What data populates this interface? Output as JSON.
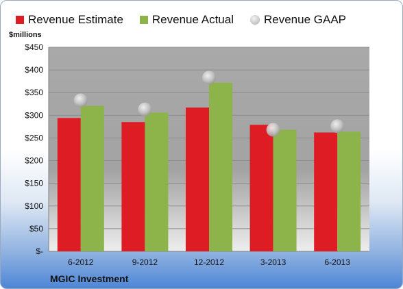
{
  "legend": {
    "estimate": "Revenue Estimate",
    "actual": "Revenue Actual",
    "gaap": "Revenue GAAP"
  },
  "units_label": "$millions",
  "footer_label": "MGIC Investment",
  "colors": {
    "estimate": "#dd1c24",
    "actual": "#8db44a",
    "gaap": "#c8c8c8",
    "plot_background": "#a6a6a6"
  },
  "chart_data": {
    "type": "bar",
    "categories": [
      "6-2012",
      "9-2012",
      "12-2012",
      "3-2013",
      "6-2013"
    ],
    "series": [
      {
        "name": "Revenue Estimate",
        "values": [
          294,
          285,
          317,
          279,
          262
        ]
      },
      {
        "name": "Revenue Actual",
        "values": [
          321,
          306,
          372,
          268,
          264
        ]
      },
      {
        "name": "Revenue GAAP",
        "values": [
          333,
          313,
          383,
          268,
          276
        ],
        "style": "marker"
      }
    ],
    "ylabel": "$millions",
    "ylim": [
      0,
      450
    ],
    "yticks": [
      0,
      50,
      100,
      150,
      200,
      250,
      300,
      350,
      400,
      450
    ],
    "ytick_labels": [
      "$-",
      "$50",
      "$100",
      "$150",
      "$200",
      "$250",
      "$300",
      "$350",
      "$400",
      "$450"
    ],
    "grid": true,
    "legend_position": "top"
  }
}
